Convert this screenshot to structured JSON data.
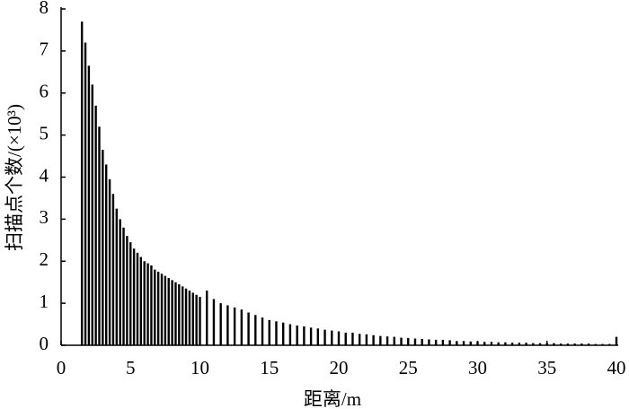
{
  "chart_data": {
    "type": "bar",
    "xlabel": "距离/m",
    "ylabel": "扫描点个数/(×10³)",
    "color": "#000000",
    "x": [
      1.5,
      1.75,
      2,
      2.25,
      2.5,
      2.75,
      3,
      3.25,
      3.5,
      3.75,
      4,
      4.25,
      4.5,
      4.75,
      5,
      5.25,
      5.5,
      5.75,
      6,
      6.25,
      6.5,
      6.75,
      7,
      7.25,
      7.5,
      7.75,
      8,
      8.25,
      8.5,
      8.75,
      9,
      9.25,
      9.5,
      9.75,
      10,
      10.5,
      11,
      11.5,
      12,
      12.5,
      13,
      13.5,
      14,
      14.5,
      15,
      15.5,
      16,
      16.5,
      17,
      17.5,
      18,
      18.5,
      19,
      19.5,
      20,
      20.5,
      21,
      21.5,
      22,
      22.5,
      23,
      23.5,
      24,
      24.5,
      25,
      25.5,
      26,
      26.5,
      27,
      27.5,
      28,
      28.5,
      29,
      29.5,
      30,
      30.5,
      31,
      31.5,
      32,
      32.5,
      33,
      33.5,
      34,
      34.5,
      35,
      35.5,
      36,
      36.5,
      37,
      37.5,
      38,
      38.5,
      39,
      39.5,
      40
    ],
    "values": [
      7.7,
      7.2,
      6.65,
      6.2,
      5.7,
      5.2,
      4.65,
      4.3,
      3.95,
      3.6,
      3.25,
      3.0,
      2.8,
      2.6,
      2.45,
      2.3,
      2.2,
      2.1,
      2.0,
      1.95,
      1.9,
      1.8,
      1.75,
      1.7,
      1.65,
      1.6,
      1.55,
      1.5,
      1.45,
      1.4,
      1.35,
      1.3,
      1.25,
      1.2,
      1.15,
      1.3,
      1.1,
      1.0,
      0.95,
      0.9,
      0.85,
      0.78,
      0.72,
      0.66,
      0.6,
      0.57,
      0.54,
      0.5,
      0.47,
      0.45,
      0.42,
      0.4,
      0.37,
      0.35,
      0.33,
      0.3,
      0.3,
      0.27,
      0.26,
      0.24,
      0.22,
      0.21,
      0.2,
      0.18,
      0.17,
      0.16,
      0.15,
      0.14,
      0.13,
      0.13,
      0.12,
      0.1,
      0.1,
      0.09,
      0.09,
      0.08,
      0.08,
      0.07,
      0.07,
      0.06,
      0.06,
      0.06,
      0.05,
      0.05,
      0.05,
      0.05,
      0.04,
      0.04,
      0.04,
      0.04,
      0.04,
      0.03,
      0.03,
      0.03,
      0.2
    ],
    "xlim": [
      0,
      40
    ],
    "xticks": [
      0,
      5,
      10,
      15,
      20,
      25,
      30,
      35,
      40
    ],
    "ylim": [
      0,
      8
    ],
    "yticks": [
      0,
      1,
      2,
      3,
      4,
      5,
      6,
      7,
      8
    ]
  }
}
